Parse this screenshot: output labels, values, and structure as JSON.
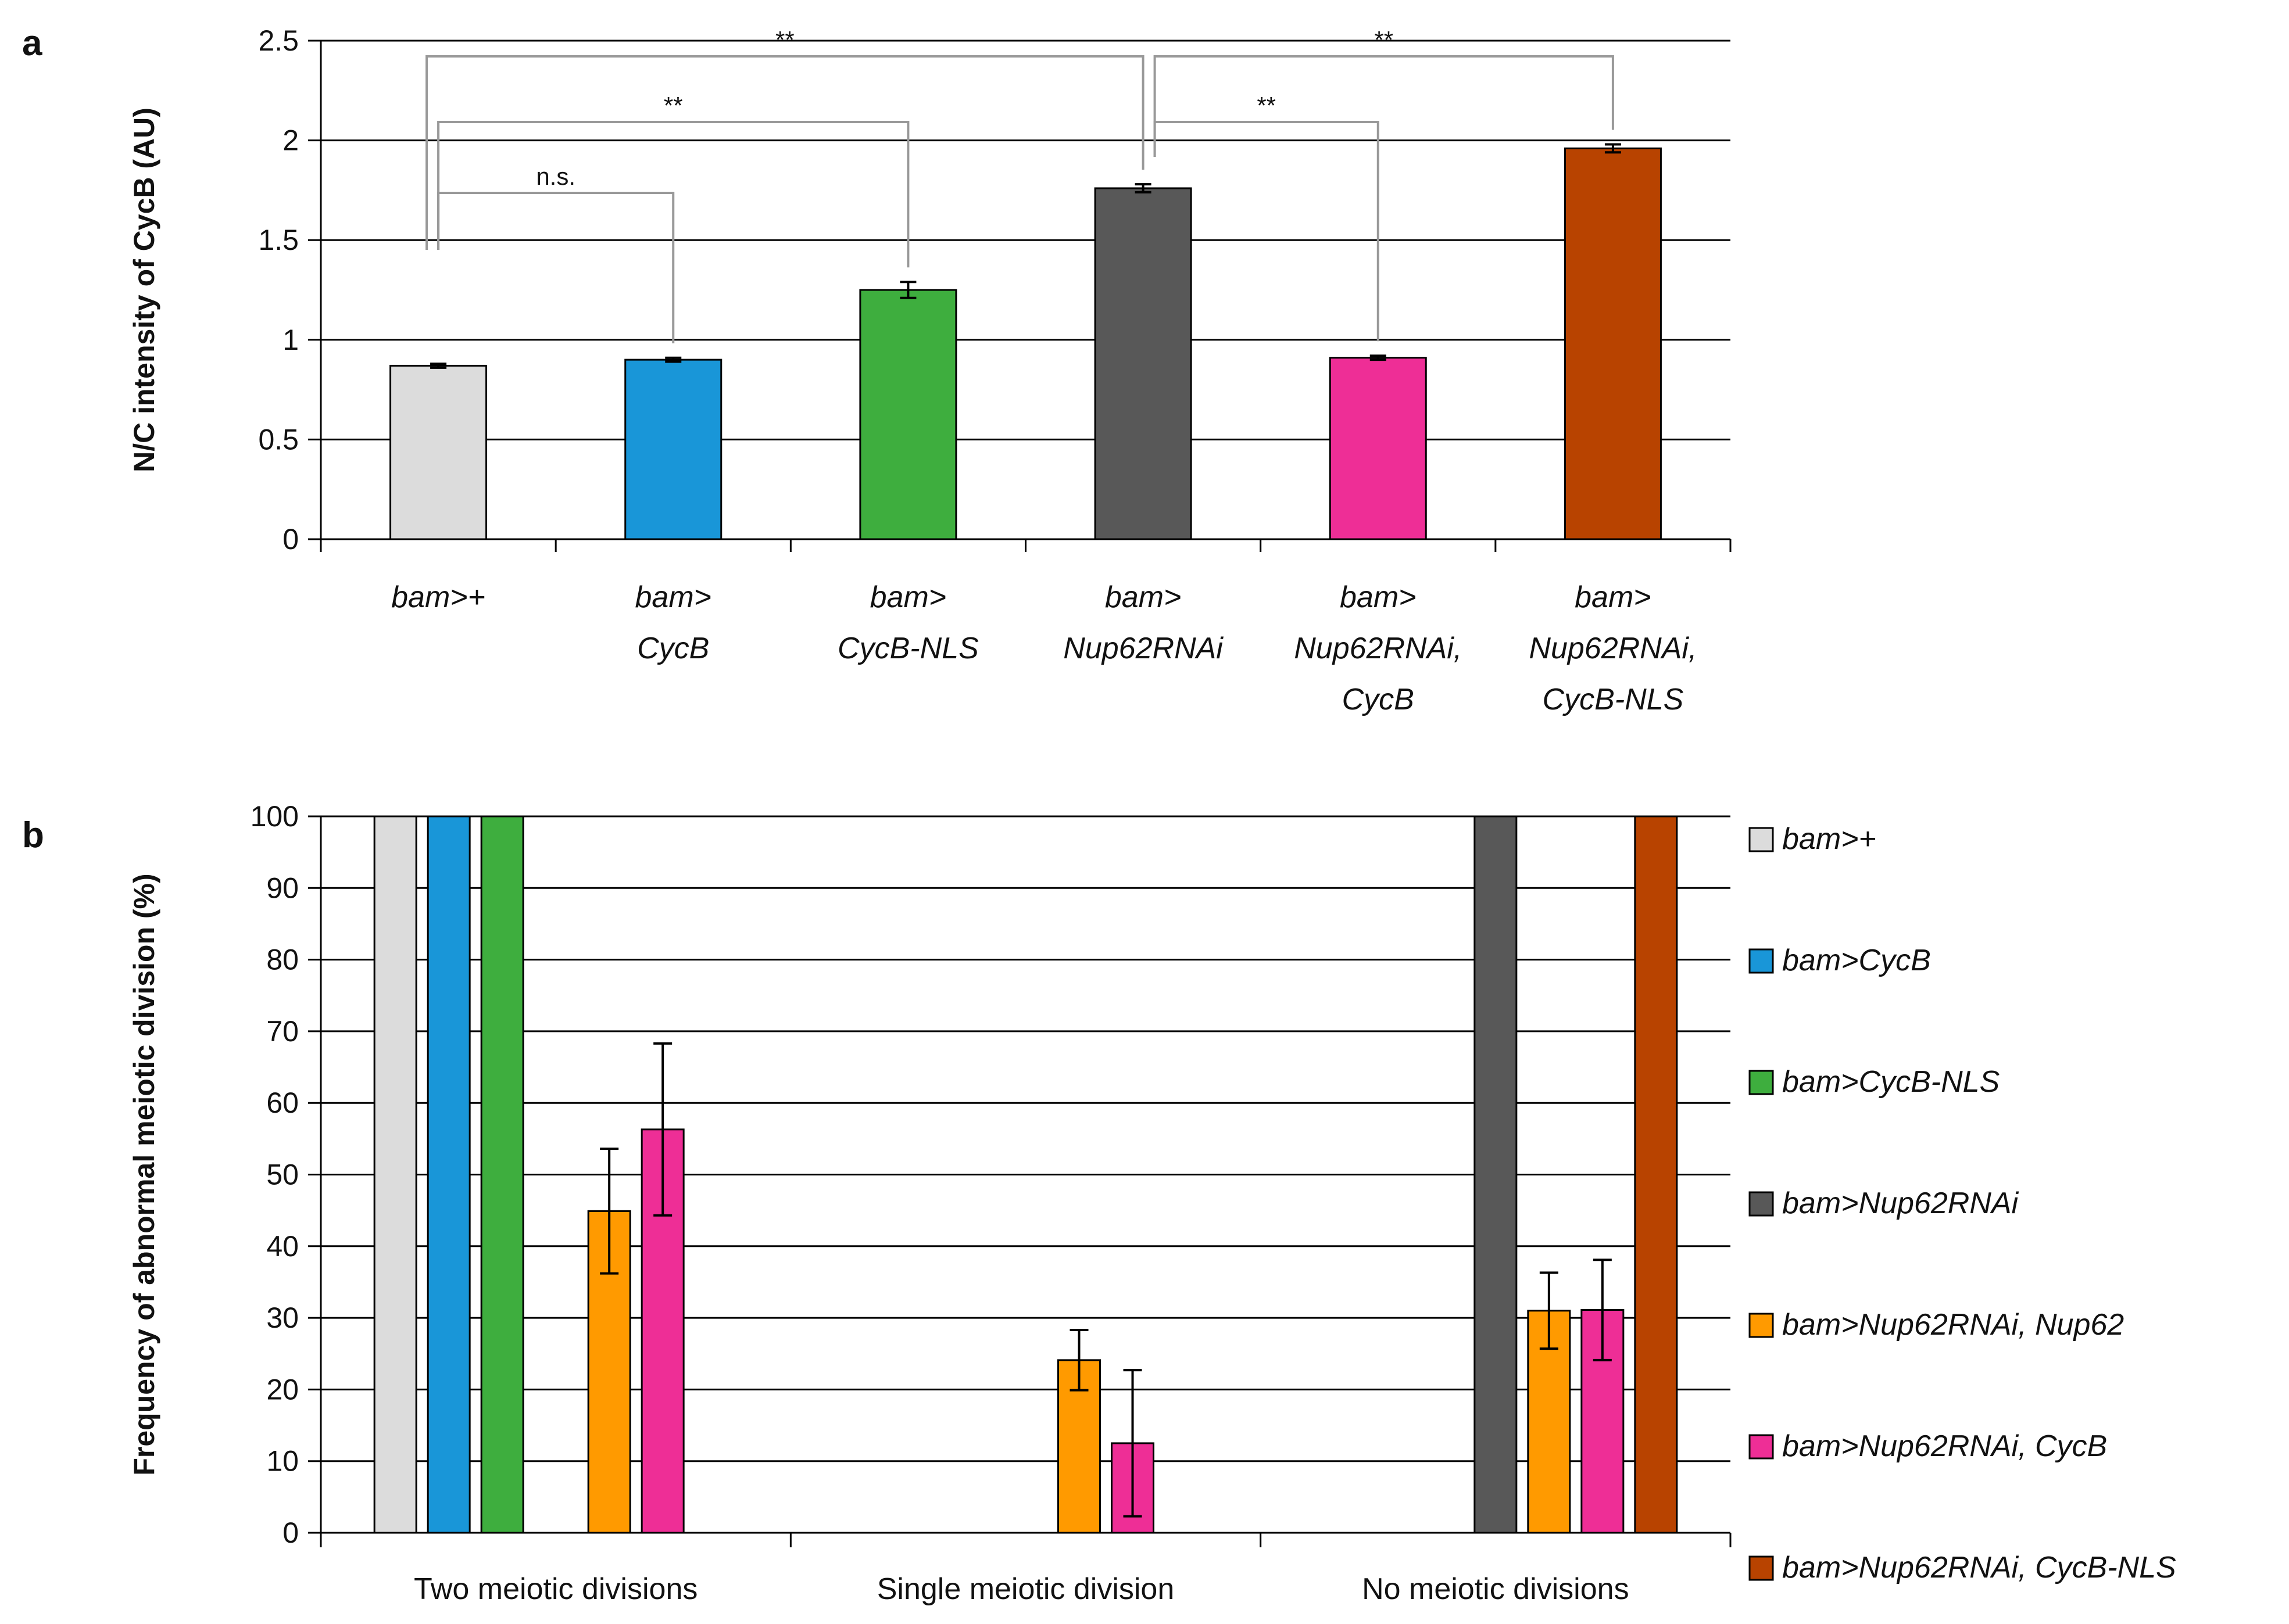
{
  "figure": {
    "panel_a_label": "a",
    "panel_b_label": "b"
  },
  "chart_data": [
    {
      "id": "a",
      "type": "bar",
      "title": "",
      "xlabel": "",
      "ylabel": "N/C intensity of CycB (AU)",
      "ylim": [
        0,
        2.5
      ],
      "yticks": [
        "0",
        "0.5",
        "1",
        "1.5",
        "2",
        "2.5"
      ],
      "grid": true,
      "categories": [
        [
          "bam>+"
        ],
        [
          "bam>",
          "CycB"
        ],
        [
          "bam>",
          "CycB-NLS"
        ],
        [
          "bam>",
          "Nup62RNAi"
        ],
        [
          "bam>",
          "Nup62RNAi,",
          "CycB"
        ],
        [
          "bam>",
          "Nup62RNAi,",
          "CycB-NLS"
        ]
      ],
      "values": [
        0.87,
        0.9,
        1.25,
        1.76,
        0.91,
        1.96
      ],
      "errors": [
        0.01,
        0.01,
        0.04,
        0.02,
        0.01,
        0.02
      ],
      "colors": [
        "#dcdcdc",
        "#1996d8",
        "#3eae3e",
        "#585858",
        "#ee2e96",
        "#b84300"
      ],
      "significance": [
        {
          "from": 0,
          "to": 1,
          "label": "n.s."
        },
        {
          "from": 0,
          "to": 2,
          "label": "**"
        },
        {
          "from": 0,
          "to": 3,
          "label": "**"
        },
        {
          "from": 3,
          "to": 4,
          "label": "**"
        },
        {
          "from": 3,
          "to": 5,
          "label": "**"
        }
      ]
    },
    {
      "id": "b",
      "type": "bar",
      "title": "",
      "xlabel": "",
      "ylabel": "Frequency of abnormal meiotic division (%)",
      "ylim": [
        0,
        100
      ],
      "yticks": [
        "0",
        "10",
        "20",
        "30",
        "40",
        "50",
        "60",
        "70",
        "80",
        "90",
        "100"
      ],
      "grid": true,
      "legend_position": "right",
      "categories": [
        "Two meiotic divisions",
        "Single meiotic division",
        "No meiotic divisions"
      ],
      "series": [
        {
          "name": "bam>+",
          "color": "#dcdcdc",
          "values": [
            100,
            0,
            0
          ],
          "errors": [
            0,
            0,
            0
          ]
        },
        {
          "name": "bam>CycB",
          "color": "#1996d8",
          "values": [
            100,
            0,
            0
          ],
          "errors": [
            0,
            0,
            0
          ]
        },
        {
          "name": "bam>CycB-NLS",
          "color": "#3eae3e",
          "values": [
            100,
            0,
            0
          ],
          "errors": [
            0,
            0,
            0
          ]
        },
        {
          "name": "bam>Nup62RNAi",
          "color": "#585858",
          "values": [
            0,
            0,
            100
          ],
          "errors": [
            0,
            0,
            0
          ]
        },
        {
          "name": "bam>Nup62RNAi, Nup62",
          "color": "#ff9a00",
          "values": [
            44.9,
            24.1,
            31.0
          ],
          "errors": [
            8.7,
            4.2,
            5.3
          ]
        },
        {
          "name": "bam>Nup62RNAi, CycB",
          "color": "#ee2e96",
          "values": [
            56.3,
            12.5,
            31.1
          ],
          "errors": [
            12.0,
            10.2,
            7.0
          ]
        },
        {
          "name": "bam>Nup62RNAi, CycB-NLS",
          "color": "#b84300",
          "values": [
            0,
            0,
            100
          ],
          "errors": [
            0,
            0,
            0
          ]
        }
      ]
    }
  ]
}
